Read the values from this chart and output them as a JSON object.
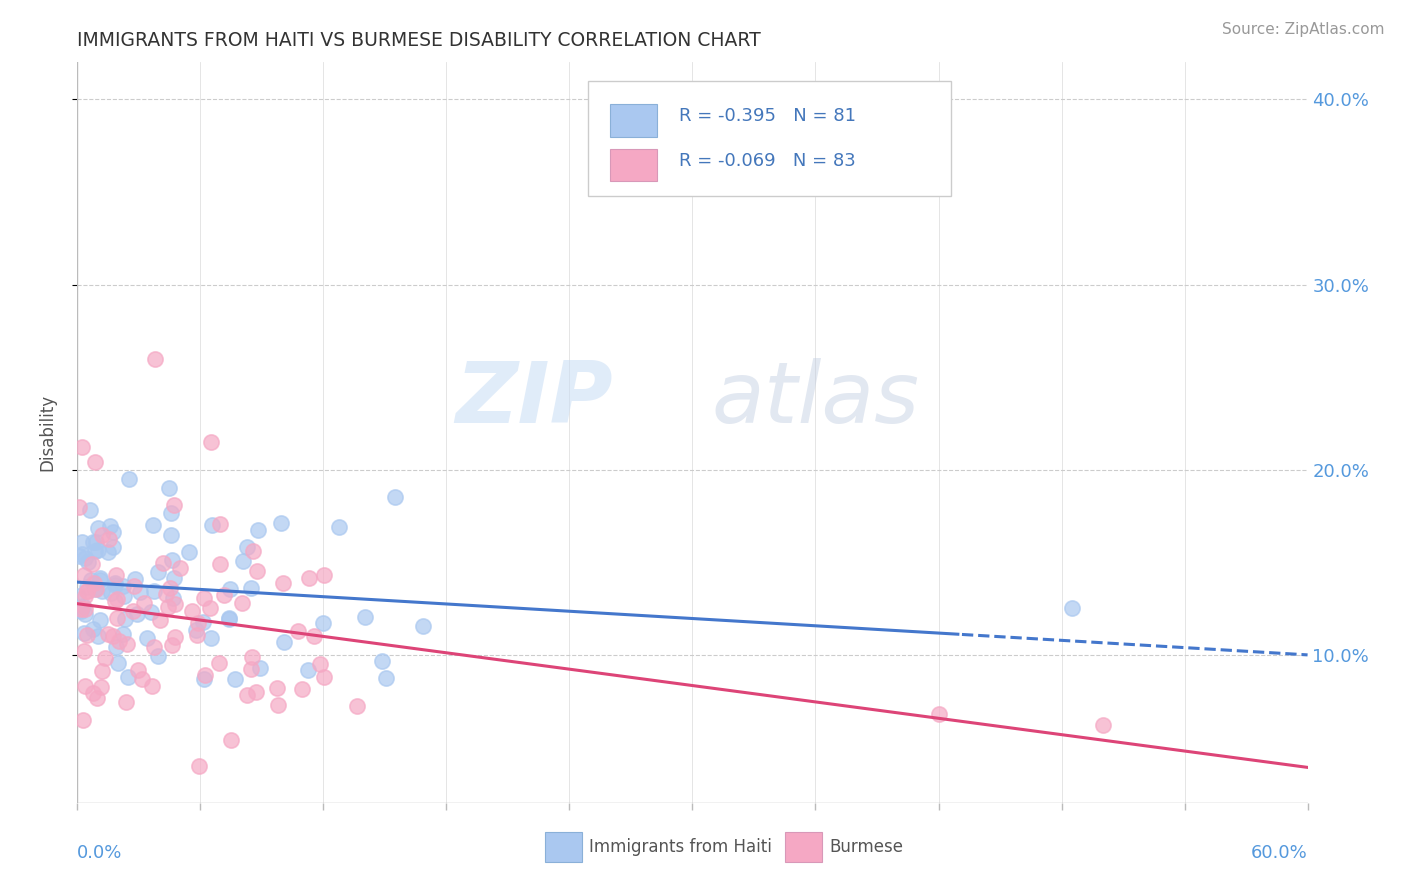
{
  "title": "IMMIGRANTS FROM HAITI VS BURMESE DISABILITY CORRELATION CHART",
  "source_text": "Source: ZipAtlas.com",
  "ylabel": "Disability",
  "xmin": 0.0,
  "xmax": 0.6,
  "ymin": 0.02,
  "ymax": 0.42,
  "ytick_vals": [
    0.1,
    0.2,
    0.3,
    0.4
  ],
  "ytick_labels": [
    "10.0%",
    "20.0%",
    "30.0%",
    "40.0%"
  ],
  "legend_text1": "R = -0.395   N = 81",
  "legend_text2": "R = -0.069   N = 83",
  "legend_label1": "Immigrants from Haiti",
  "legend_label2": "Burmese",
  "haiti_color": "#aac8f0",
  "burmese_color": "#f5a8c4",
  "haiti_line_color": "#4477cc",
  "burmese_line_color": "#dd4477",
  "watermark_zip": "ZIP",
  "watermark_atlas": "atlas",
  "title_color": "#333333",
  "axis_label_color": "#5599dd",
  "source_color": "#999999",
  "ylabel_color": "#555555",
  "grid_color": "#cccccc",
  "legend_text_color": "#4477bb",
  "legend_border_color": "#cccccc",
  "haiti_r": -0.395,
  "burmese_r": -0.069,
  "haiti_n": 81,
  "burmese_n": 83
}
